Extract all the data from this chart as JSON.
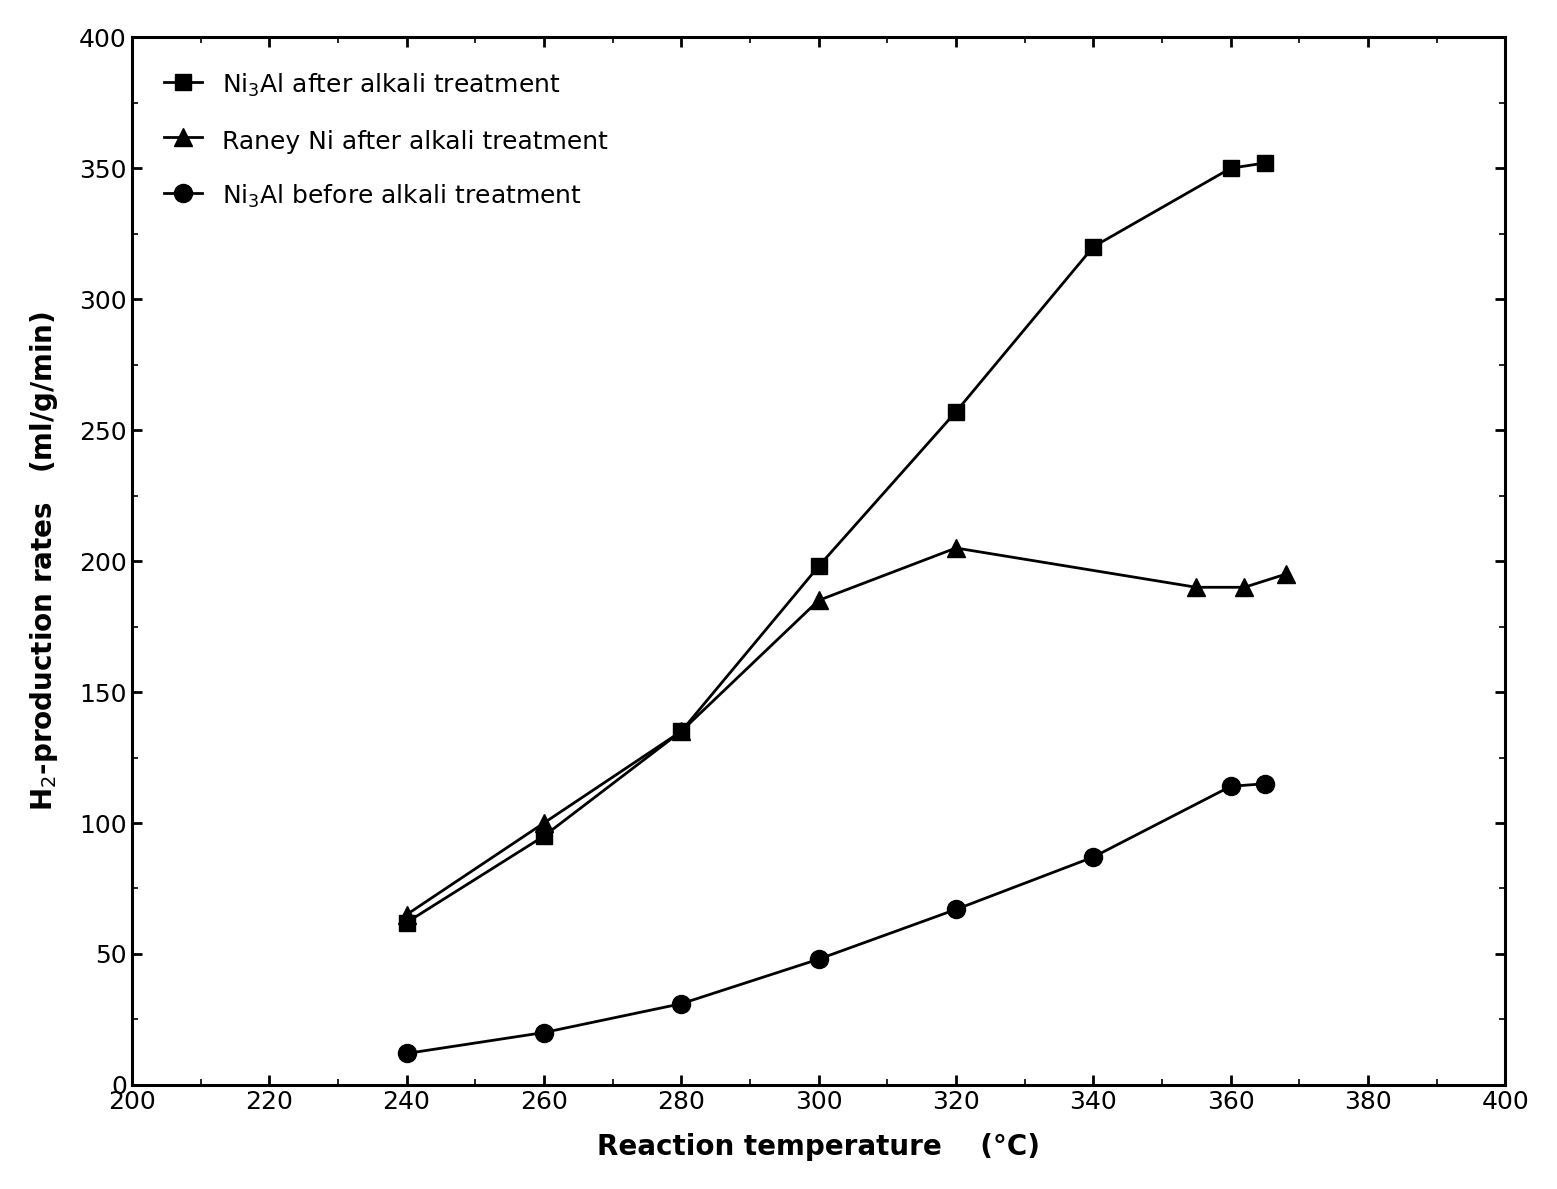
{
  "series": [
    {
      "label": "Ni$_3$Al after alkali treatment",
      "marker": "s",
      "linestyle": "-",
      "color": "#000000",
      "markersize": 12,
      "x": [
        240,
        260,
        280,
        300,
        320,
        340,
        360,
        365
      ],
      "y": [
        62,
        95,
        135,
        198,
        257,
        320,
        350,
        352
      ]
    },
    {
      "label": "Raney Ni after alkali treatment",
      "marker": "^",
      "linestyle": "-",
      "color": "#000000",
      "markersize": 13,
      "x": [
        240,
        260,
        280,
        300,
        320,
        355,
        362,
        368
      ],
      "y": [
        65,
        100,
        135,
        185,
        205,
        190,
        190,
        195
      ]
    },
    {
      "label": "Ni$_3$Al before alkali treatment",
      "marker": "o",
      "linestyle": "-",
      "color": "#000000",
      "markersize": 13,
      "x": [
        240,
        260,
        280,
        300,
        320,
        340,
        360,
        365
      ],
      "y": [
        12,
        20,
        31,
        48,
        67,
        87,
        114,
        115
      ]
    }
  ],
  "xlabel": "Reaction temperature    (°C)",
  "ylabel": "H$_2$-production rates   (ml/g/min)",
  "xlim": [
    200,
    400
  ],
  "ylim": [
    0,
    400
  ],
  "xticks": [
    200,
    220,
    240,
    260,
    280,
    300,
    320,
    340,
    360,
    380,
    400
  ],
  "yticks": [
    0,
    50,
    100,
    150,
    200,
    250,
    300,
    350,
    400
  ],
  "background_color": "#ffffff",
  "legend_loc": "upper left",
  "label_fontsize": 20,
  "tick_fontsize": 18,
  "legend_fontsize": 18
}
